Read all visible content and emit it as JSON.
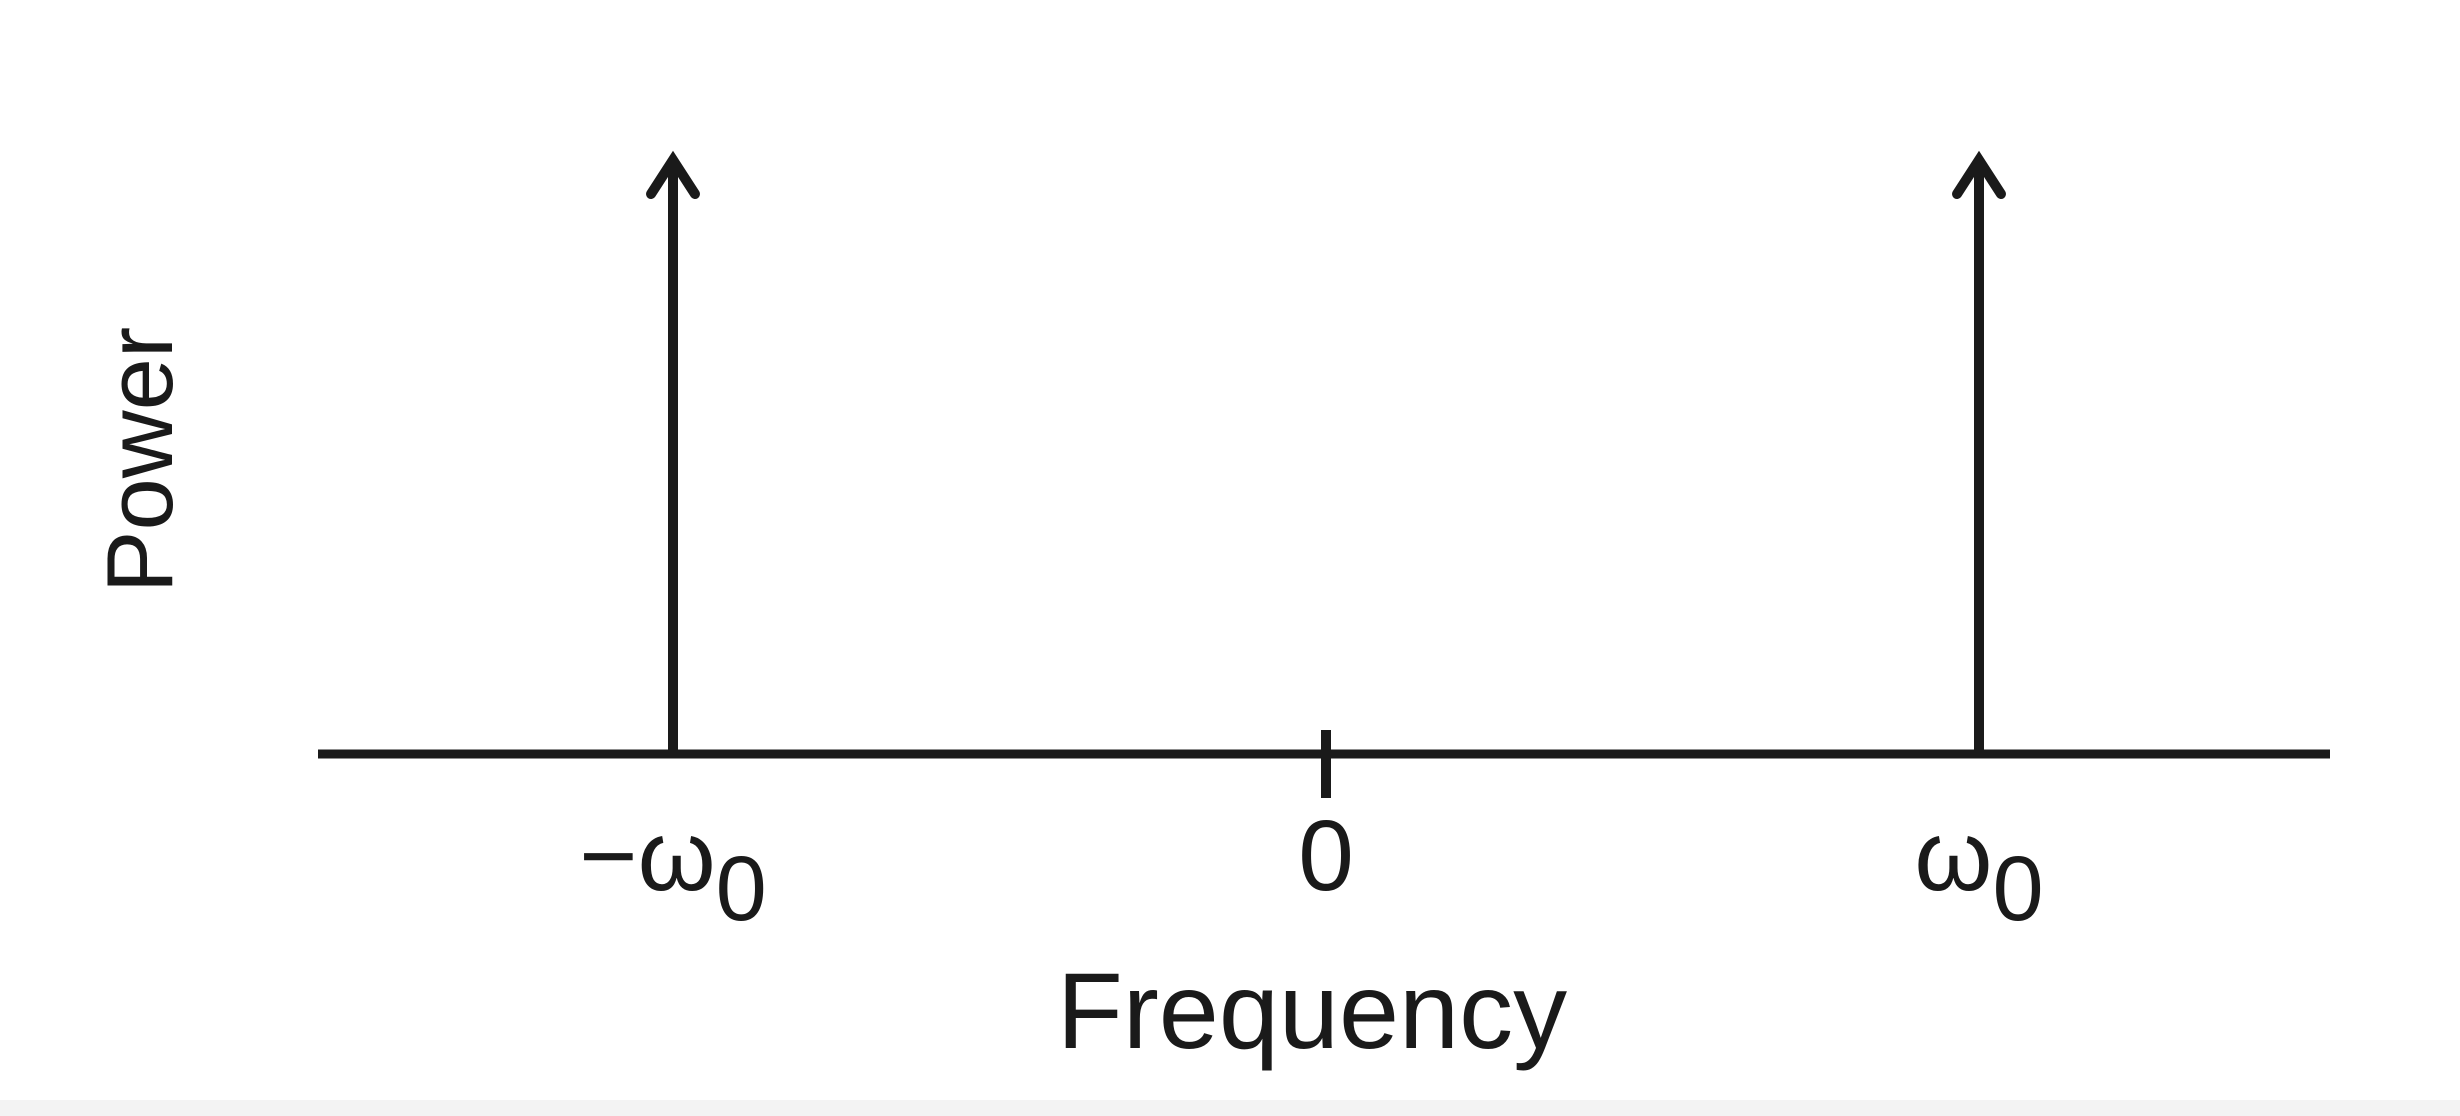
{
  "chart_data": {
    "type": "line",
    "title": "",
    "xlabel": "Frequency",
    "ylabel": "Power",
    "x_ticks": [
      {
        "value": -1,
        "label": "−ω",
        "subscript": "0"
      },
      {
        "value": 0,
        "label": "0",
        "subscript": ""
      },
      {
        "value": 1,
        "label": "ω",
        "subscript": "0"
      }
    ],
    "impulses": [
      {
        "x": -1,
        "y": 1
      },
      {
        "x": 1,
        "y": 1
      }
    ],
    "xlim": [
      -1.55,
      1.55
    ],
    "ylim": [
      0,
      1.1
    ],
    "grid": false,
    "legend": "none",
    "colors": {
      "ink": "#1a1a1a",
      "background": "#ffffff"
    }
  }
}
